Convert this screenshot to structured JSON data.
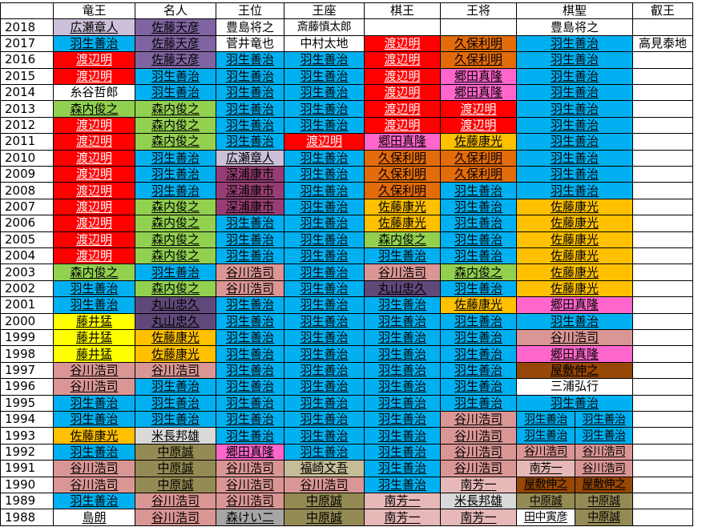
{
  "colors": {
    "habu": "#00b0f0",
    "watanabe": "#ff0000",
    "sato_amahiko": "#8064a2",
    "moriuchi": "#92d050",
    "tanigawa": "#da9694",
    "sato_yasumitsu": "#ffc000",
    "kubo": "#e26b0a",
    "maruyama": "#60497a",
    "fujii": "#ffff00",
    "hirose": "#ccc0da",
    "fukaura": "#963e73",
    "goda": "#ff66cc",
    "nakahara": "#948a54",
    "minami": "#e6b8b7",
    "yashiki": "#974706",
    "yonenaga": "#d9d9d9",
    "morikeiji": "#a6a6a6",
    "fukusaki": "#c4bd97",
    "none": "#ffffff"
  },
  "headers": [
    "",
    "竜王",
    "名人",
    "王位",
    "王座",
    "棋王",
    "王将",
    "棋聖",
    "叡王"
  ],
  "rows": [
    {
      "year": "2018",
      "cells": [
        [
          "広瀬章人",
          "hirose"
        ],
        [
          "佐藤天彦",
          "sato_amahiko"
        ],
        [
          "豊島将之",
          "none"
        ],
        [
          "斎藤慎太郎",
          "none"
        ],
        [
          "",
          ""
        ],
        [
          "",
          ""
        ],
        [
          "豊島将之",
          "none"
        ],
        [
          "",
          ""
        ]
      ]
    },
    {
      "year": "2017",
      "cells": [
        [
          "羽生善治",
          "habu"
        ],
        [
          "佐藤天彦",
          "sato_amahiko"
        ],
        [
          "菅井竜也",
          "none"
        ],
        [
          "中村太地",
          "none"
        ],
        [
          "渡辺明",
          "watanabe"
        ],
        [
          "久保利明",
          "kubo"
        ],
        [
          "羽生善治",
          "habu"
        ],
        [
          "高見泰地",
          "none"
        ]
      ]
    },
    {
      "year": "2016",
      "cells": [
        [
          "渡辺明",
          "watanabe"
        ],
        [
          "佐藤天彦",
          "sato_amahiko"
        ],
        [
          "羽生善治",
          "habu"
        ],
        [
          "羽生善治",
          "habu"
        ],
        [
          "渡辺明",
          "watanabe"
        ],
        [
          "久保利明",
          "kubo"
        ],
        [
          "羽生善治",
          "habu"
        ]
      ]
    },
    {
      "year": "2015",
      "cells": [
        [
          "渡辺明",
          "watanabe"
        ],
        [
          "羽生善治",
          "habu"
        ],
        [
          "羽生善治",
          "habu"
        ],
        [
          "羽生善治",
          "habu"
        ],
        [
          "渡辺明",
          "watanabe"
        ],
        [
          "郷田真隆",
          "goda"
        ],
        [
          "羽生善治",
          "habu"
        ]
      ]
    },
    {
      "year": "2014",
      "cells": [
        [
          "糸谷哲郎",
          "none"
        ],
        [
          "羽生善治",
          "habu"
        ],
        [
          "羽生善治",
          "habu"
        ],
        [
          "羽生善治",
          "habu"
        ],
        [
          "渡辺明",
          "watanabe"
        ],
        [
          "郷田真隆",
          "goda"
        ],
        [
          "羽生善治",
          "habu"
        ]
      ]
    },
    {
      "year": "2013",
      "cells": [
        [
          "森内俊之",
          "moriuchi"
        ],
        [
          "森内俊之",
          "moriuchi"
        ],
        [
          "羽生善治",
          "habu"
        ],
        [
          "羽生善治",
          "habu"
        ],
        [
          "渡辺明",
          "watanabe"
        ],
        [
          "渡辺明",
          "watanabe"
        ],
        [
          "羽生善治",
          "habu"
        ]
      ]
    },
    {
      "year": "2012",
      "cells": [
        [
          "渡辺明",
          "watanabe"
        ],
        [
          "森内俊之",
          "moriuchi"
        ],
        [
          "羽生善治",
          "habu"
        ],
        [
          "羽生善治",
          "habu"
        ],
        [
          "渡辺明",
          "watanabe"
        ],
        [
          "渡辺明",
          "watanabe"
        ],
        [
          "羽生善治",
          "habu"
        ]
      ]
    },
    {
      "year": "2011",
      "cells": [
        [
          "渡辺明",
          "watanabe"
        ],
        [
          "森内俊之",
          "moriuchi"
        ],
        [
          "羽生善治",
          "habu"
        ],
        [
          "渡辺明",
          "watanabe"
        ],
        [
          "郷田真隆",
          "goda"
        ],
        [
          "佐藤康光",
          "sato_yasumitsu"
        ],
        [
          "羽生善治",
          "habu"
        ]
      ]
    },
    {
      "year": "2010",
      "cells": [
        [
          "渡辺明",
          "watanabe"
        ],
        [
          "羽生善治",
          "habu"
        ],
        [
          "広瀬章人",
          "hirose"
        ],
        [
          "羽生善治",
          "habu"
        ],
        [
          "久保利明",
          "kubo"
        ],
        [
          "久保利明",
          "kubo"
        ],
        [
          "羽生善治",
          "habu"
        ]
      ]
    },
    {
      "year": "2009",
      "cells": [
        [
          "渡辺明",
          "watanabe"
        ],
        [
          "羽生善治",
          "habu"
        ],
        [
          "深浦康市",
          "fukaura"
        ],
        [
          "羽生善治",
          "habu"
        ],
        [
          "久保利明",
          "kubo"
        ],
        [
          "久保利明",
          "kubo"
        ],
        [
          "羽生善治",
          "habu"
        ]
      ]
    },
    {
      "year": "2008",
      "cells": [
        [
          "渡辺明",
          "watanabe"
        ],
        [
          "羽生善治",
          "habu"
        ],
        [
          "深浦康市",
          "fukaura"
        ],
        [
          "羽生善治",
          "habu"
        ],
        [
          "久保利明",
          "kubo"
        ],
        [
          "羽生善治",
          "habu"
        ],
        [
          "羽生善治",
          "habu"
        ]
      ]
    },
    {
      "year": "2007",
      "cells": [
        [
          "渡辺明",
          "watanabe"
        ],
        [
          "森内俊之",
          "moriuchi"
        ],
        [
          "深浦康市",
          "fukaura"
        ],
        [
          "羽生善治",
          "habu"
        ],
        [
          "佐藤康光",
          "sato_yasumitsu"
        ],
        [
          "羽生善治",
          "habu"
        ],
        [
          "佐藤康光",
          "sato_yasumitsu"
        ]
      ]
    },
    {
      "year": "2006",
      "cells": [
        [
          "渡辺明",
          "watanabe"
        ],
        [
          "森内俊之",
          "moriuchi"
        ],
        [
          "羽生善治",
          "habu"
        ],
        [
          "羽生善治",
          "habu"
        ],
        [
          "佐藤康光",
          "sato_yasumitsu"
        ],
        [
          "羽生善治",
          "habu"
        ],
        [
          "佐藤康光",
          "sato_yasumitsu"
        ]
      ]
    },
    {
      "year": "2005",
      "cells": [
        [
          "渡辺明",
          "watanabe"
        ],
        [
          "森内俊之",
          "moriuchi"
        ],
        [
          "羽生善治",
          "habu"
        ],
        [
          "羽生善治",
          "habu"
        ],
        [
          "森内俊之",
          "moriuchi"
        ],
        [
          "羽生善治",
          "habu"
        ],
        [
          "佐藤康光",
          "sato_yasumitsu"
        ]
      ]
    },
    {
      "year": "2004",
      "cells": [
        [
          "渡辺明",
          "watanabe"
        ],
        [
          "森内俊之",
          "moriuchi"
        ],
        [
          "羽生善治",
          "habu"
        ],
        [
          "羽生善治",
          "habu"
        ],
        [
          "羽生善治",
          "habu"
        ],
        [
          "羽生善治",
          "habu"
        ],
        [
          "佐藤康光",
          "sato_yasumitsu"
        ]
      ]
    },
    {
      "year": "2003",
      "cells": [
        [
          "森内俊之",
          "moriuchi"
        ],
        [
          "羽生善治",
          "habu"
        ],
        [
          "谷川浩司",
          "tanigawa"
        ],
        [
          "羽生善治",
          "habu"
        ],
        [
          "谷川浩司",
          "tanigawa"
        ],
        [
          "森内俊之",
          "moriuchi"
        ],
        [
          "佐藤康光",
          "sato_yasumitsu"
        ]
      ]
    },
    {
      "year": "2002",
      "cells": [
        [
          "羽生善治",
          "habu"
        ],
        [
          "森内俊之",
          "moriuchi"
        ],
        [
          "谷川浩司",
          "tanigawa"
        ],
        [
          "羽生善治",
          "habu"
        ],
        [
          "丸山忠久",
          "maruyama"
        ],
        [
          "羽生善治",
          "habu"
        ],
        [
          "佐藤康光",
          "sato_yasumitsu"
        ]
      ]
    },
    {
      "year": "2001",
      "cells": [
        [
          "羽生善治",
          "habu"
        ],
        [
          "丸山忠久",
          "maruyama"
        ],
        [
          "羽生善治",
          "habu"
        ],
        [
          "羽生善治",
          "habu"
        ],
        [
          "羽生善治",
          "habu"
        ],
        [
          "佐藤康光",
          "sato_yasumitsu"
        ],
        [
          "郷田真隆",
          "goda"
        ]
      ]
    },
    {
      "year": "2000",
      "cells": [
        [
          "藤井猛",
          "fujii"
        ],
        [
          "丸山忠久",
          "maruyama"
        ],
        [
          "羽生善治",
          "habu"
        ],
        [
          "羽生善治",
          "habu"
        ],
        [
          "羽生善治",
          "habu"
        ],
        [
          "羽生善治",
          "habu"
        ],
        [
          "羽生善治",
          "habu"
        ]
      ]
    },
    {
      "year": "1999",
      "cells": [
        [
          "藤井猛",
          "fujii"
        ],
        [
          "佐藤康光",
          "sato_yasumitsu"
        ],
        [
          "羽生善治",
          "habu"
        ],
        [
          "羽生善治",
          "habu"
        ],
        [
          "羽生善治",
          "habu"
        ],
        [
          "羽生善治",
          "habu"
        ],
        [
          "谷川浩司",
          "tanigawa"
        ]
      ]
    },
    {
      "year": "1998",
      "cells": [
        [
          "藤井猛",
          "fujii"
        ],
        [
          "佐藤康光",
          "sato_yasumitsu"
        ],
        [
          "羽生善治",
          "habu"
        ],
        [
          "羽生善治",
          "habu"
        ],
        [
          "羽生善治",
          "habu"
        ],
        [
          "羽生善治",
          "habu"
        ],
        [
          "郷田真隆",
          "goda"
        ]
      ]
    },
    {
      "year": "1997",
      "cells": [
        [
          "谷川浩司",
          "tanigawa"
        ],
        [
          "谷川浩司",
          "tanigawa"
        ],
        [
          "羽生善治",
          "habu"
        ],
        [
          "羽生善治",
          "habu"
        ],
        [
          "羽生善治",
          "habu"
        ],
        [
          "羽生善治",
          "habu"
        ],
        [
          "屋敷伸之",
          "yashiki"
        ]
      ]
    },
    {
      "year": "1996",
      "cells": [
        [
          "谷川浩司",
          "tanigawa"
        ],
        [
          "羽生善治",
          "habu"
        ],
        [
          "羽生善治",
          "habu"
        ],
        [
          "羽生善治",
          "habu"
        ],
        [
          "羽生善治",
          "habu"
        ],
        [
          "羽生善治",
          "habu"
        ],
        [
          "三浦弘行",
          "none"
        ]
      ]
    },
    {
      "year": "1995",
      "cells": [
        [
          "羽生善治",
          "habu"
        ],
        [
          "羽生善治",
          "habu"
        ],
        [
          "羽生善治",
          "habu"
        ],
        [
          "羽生善治",
          "habu"
        ],
        [
          "羽生善治",
          "habu"
        ],
        [
          "羽生善治",
          "habu"
        ],
        [
          "羽生善治",
          "habu"
        ]
      ]
    },
    {
      "year": "1994",
      "cells": [
        [
          "羽生善治",
          "habu"
        ],
        [
          "羽生善治",
          "habu"
        ],
        [
          "羽生善治",
          "habu"
        ],
        [
          "羽生善治",
          "habu"
        ],
        [
          "羽生善治",
          "habu"
        ],
        [
          "谷川浩司",
          "tanigawa"
        ],
        [
          "羽生善治",
          "habu"
        ],
        [
          "羽生善治",
          "habu"
        ]
      ]
    },
    {
      "year": "1993",
      "cells": [
        [
          "佐藤康光",
          "sato_yasumitsu"
        ],
        [
          "米長邦雄",
          "yonenaga"
        ],
        [
          "羽生善治",
          "habu"
        ],
        [
          "羽生善治",
          "habu"
        ],
        [
          "羽生善治",
          "habu"
        ],
        [
          "谷川浩司",
          "tanigawa"
        ],
        [
          "羽生善治",
          "habu"
        ],
        [
          "羽生善治",
          "habu"
        ]
      ]
    },
    {
      "year": "1992",
      "cells": [
        [
          "羽生善治",
          "habu"
        ],
        [
          "中原誠",
          "nakahara"
        ],
        [
          "郷田真隆",
          "goda"
        ],
        [
          "羽生善治",
          "habu"
        ],
        [
          "羽生善治",
          "habu"
        ],
        [
          "谷川浩司",
          "tanigawa"
        ],
        [
          "谷川浩司",
          "tanigawa"
        ],
        [
          "谷川浩司",
          "tanigawa"
        ]
      ]
    },
    {
      "year": "1991",
      "cells": [
        [
          "谷川浩司",
          "tanigawa"
        ],
        [
          "中原誠",
          "nakahara"
        ],
        [
          "谷川浩司",
          "tanigawa"
        ],
        [
          "福崎文吾",
          "fukusaki"
        ],
        [
          "羽生善治",
          "habu"
        ],
        [
          "谷川浩司",
          "tanigawa"
        ],
        [
          "南芳一",
          "minami"
        ],
        [
          "谷川浩司",
          "tanigawa"
        ]
      ]
    },
    {
      "year": "1990",
      "cells": [
        [
          "谷川浩司",
          "tanigawa"
        ],
        [
          "中原誠",
          "nakahara"
        ],
        [
          "谷川浩司",
          "tanigawa"
        ],
        [
          "谷川浩司",
          "tanigawa"
        ],
        [
          "羽生善治",
          "habu"
        ],
        [
          "南芳一",
          "minami"
        ],
        [
          "屋敷伸之",
          "yashiki"
        ],
        [
          "屋敷伸之",
          "yashiki"
        ]
      ]
    },
    {
      "year": "1989",
      "cells": [
        [
          "羽生善治",
          "habu"
        ],
        [
          "谷川浩司",
          "tanigawa"
        ],
        [
          "谷川浩司",
          "tanigawa"
        ],
        [
          "中原誠",
          "nakahara"
        ],
        [
          "南芳一",
          "minami"
        ],
        [
          "米長邦雄",
          "yonenaga"
        ],
        [
          "中原誠",
          "nakahara"
        ],
        [
          "中原誠",
          "nakahara"
        ]
      ]
    },
    {
      "year": "1988",
      "cells": [
        [
          "島朗",
          "none"
        ],
        [
          "谷川浩司",
          "tanigawa"
        ],
        [
          "森けい二",
          "morikeiji"
        ],
        [
          "中原誠",
          "nakahara"
        ],
        [
          "南芳一",
          "minami"
        ],
        [
          "南芳一",
          "minami"
        ],
        [
          "田中寅彦",
          "none"
        ],
        [
          "中原誠",
          "nakahara"
        ]
      ]
    }
  ]
}
